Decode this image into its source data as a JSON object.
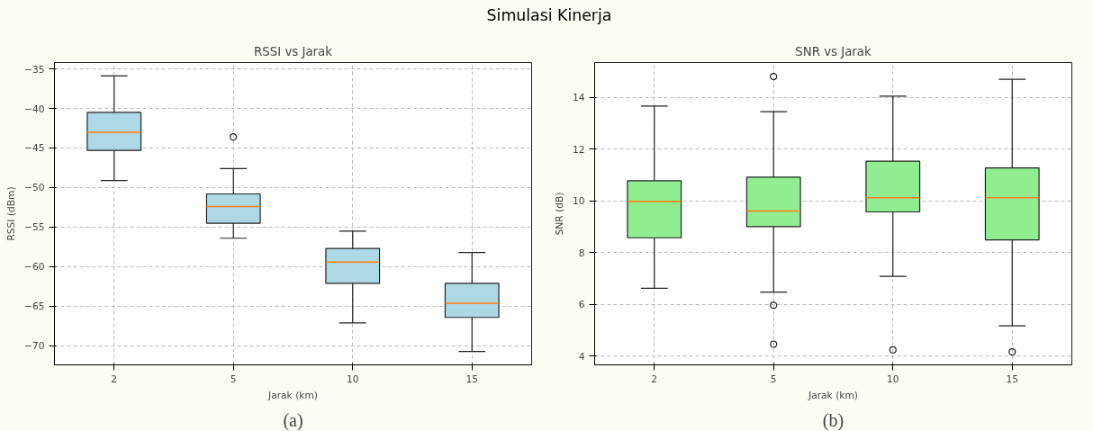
{
  "chart_data": [
    {
      "type": "box",
      "title": "RSSI vs Jarak",
      "xlabel": "Jarak (km)",
      "ylabel": "RSSI (dBm)",
      "annotations": [
        "Simulasi Kinerja",
        "(a)"
      ],
      "categories": [
        "2",
        "5",
        "10",
        "15"
      ],
      "ylim": [
        -72.4,
        -34.2
      ],
      "yticks": [
        -70,
        -65,
        -60,
        -55,
        -50,
        -45,
        -40,
        -35
      ],
      "grid": true,
      "series": [
        {
          "color": "#add8e6",
          "boxes": [
            {
              "low": -49.1,
              "q1": -45.3,
              "median": -43.0,
              "q3": -40.5,
              "high": -35.9
            },
            {
              "low": -56.4,
              "q1": -54.5,
              "median": -52.4,
              "q3": -50.8,
              "high": -47.6,
              "outliers": [
                -43.6
              ]
            },
            {
              "low": -67.1,
              "q1": -62.1,
              "median": -59.4,
              "q3": -57.7,
              "high": -55.5
            },
            {
              "low": -70.7,
              "q1": -66.4,
              "median": -64.6,
              "q3": -62.1,
              "high": -58.2
            }
          ]
        }
      ]
    },
    {
      "type": "box",
      "title": "SNR vs Jarak",
      "xlabel": "Jarak (km)",
      "ylabel": "SNR (dB)",
      "annotations": [
        "(b)"
      ],
      "categories": [
        "2",
        "5",
        "10",
        "15"
      ],
      "ylim": [
        3.66,
        15.34
      ],
      "yticks": [
        4,
        6,
        8,
        10,
        12,
        14
      ],
      "grid": true,
      "series": [
        {
          "color": "#90ee90",
          "boxes": [
            {
              "low": 6.62,
              "q1": 8.57,
              "median": 9.98,
              "q3": 10.77,
              "high": 13.66
            },
            {
              "low": 6.47,
              "q1": 9.0,
              "median": 9.6,
              "q3": 10.91,
              "high": 13.44,
              "outliers": [
                14.8,
                5.96,
                4.46
              ]
            },
            {
              "low": 7.08,
              "q1": 9.57,
              "median": 10.12,
              "q3": 11.53,
              "high": 14.04,
              "outliers": [
                4.24
              ]
            },
            {
              "low": 5.17,
              "q1": 8.49,
              "median": 10.12,
              "q3": 11.27,
              "high": 14.69,
              "outliers": [
                4.16
              ]
            }
          ]
        }
      ]
    }
  ]
}
